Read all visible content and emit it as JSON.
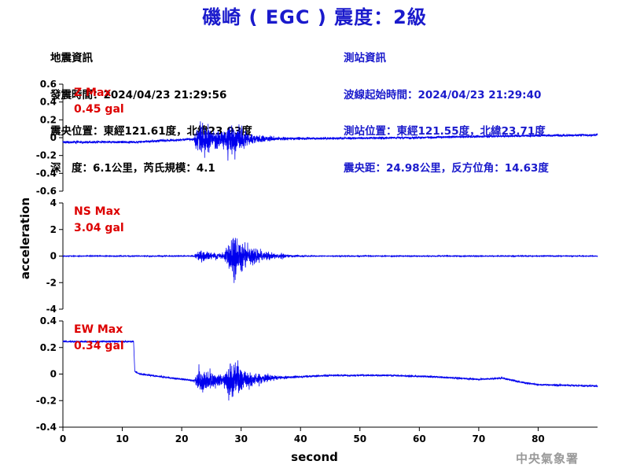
{
  "title": "磯崎 ( EGC ) 震度：2級",
  "quake_info": {
    "heading": "地震資訊",
    "time": "發震時間：2024/04/23 21:29:56",
    "epicenter": "震央位置：東經121.61度，北緯23.93度",
    "depth_magnitude": "深　度：6.1公里，芮氏規模：4.1"
  },
  "station_info": {
    "heading": "測站資訊",
    "wave_start": "波線起始時間：2024/04/23 21:29:40",
    "location": "測站位置：東經121.55度，北緯23.71度",
    "distance_azimuth": "震央距：24.98公里，反方位角：14.63度"
  },
  "watermark": "中央氣象署",
  "colors": {
    "title": "#1a1acc",
    "trace": "#0000ee",
    "max_label": "#dd0000",
    "station_text": "#1a1acc"
  },
  "chart_data": {
    "type": "line",
    "xlabel": "second",
    "ylabel": "acceleration",
    "x_ticks": [
      0,
      10,
      20,
      30,
      40,
      50,
      60,
      70,
      80
    ],
    "xlim": [
      0,
      90
    ],
    "panels": [
      {
        "name": "Z",
        "max_label": "Z Max",
        "max_value": "0.45 gal",
        "ylim": [
          -0.6,
          0.6
        ],
        "y_ticks": [
          0.6,
          0.4,
          0.2,
          0,
          -0.2,
          -0.4,
          -0.6
        ],
        "y_tick_labels": [
          "0.6",
          "0.4",
          "0.2",
          "0",
          "-0.2",
          "-0.4",
          "-0.6"
        ],
        "baseline": [
          [
            0,
            -0.05
          ],
          [
            12,
            -0.05
          ],
          [
            21,
            -0.02
          ],
          [
            40,
            -0.01
          ],
          [
            60,
            0.0
          ],
          [
            75,
            0.02
          ],
          [
            90,
            0.03
          ]
        ],
        "noise_level": 0.02,
        "bursts": [
          {
            "t_start": 22,
            "t_peak": 23,
            "t_end": 40,
            "amp": 0.38
          },
          {
            "t_start": 27,
            "t_peak": 28,
            "t_end": 38,
            "amp": 0.3
          }
        ]
      },
      {
        "name": "NS",
        "max_label": "NS Max",
        "max_value": "3.04 gal",
        "ylim": [
          -4,
          4
        ],
        "y_ticks": [
          4,
          2,
          0,
          -2,
          -4
        ],
        "y_tick_labels": [
          "4",
          "2",
          "0",
          "-2",
          "-4"
        ],
        "baseline": [
          [
            0,
            0.0
          ],
          [
            90,
            0.0
          ]
        ],
        "noise_level": 0.05,
        "bursts": [
          {
            "t_start": 22,
            "t_peak": 23,
            "t_end": 40,
            "amp": 0.8
          },
          {
            "t_start": 27,
            "t_peak": 28.5,
            "t_end": 42,
            "amp": 2.8
          }
        ]
      },
      {
        "name": "EW",
        "max_label": "EW Max",
        "max_value": "0.34 gal",
        "ylim": [
          -0.4,
          0.4
        ],
        "y_ticks": [
          0.4,
          0.2,
          0,
          -0.2,
          -0.4
        ],
        "y_tick_labels": [
          "0.4",
          "0.2",
          "0",
          "-0.2",
          "-0.4"
        ],
        "baseline": [
          [
            0,
            0.245
          ],
          [
            11.9,
            0.245
          ],
          [
            12.1,
            0.02
          ],
          [
            13,
            0.0
          ],
          [
            22,
            -0.05
          ],
          [
            30,
            -0.04
          ],
          [
            45,
            -0.01
          ],
          [
            55,
            -0.01
          ],
          [
            62,
            -0.02
          ],
          [
            70,
            -0.04
          ],
          [
            74,
            -0.03
          ],
          [
            77,
            -0.06
          ],
          [
            80,
            -0.08
          ],
          [
            90,
            -0.09
          ]
        ],
        "noise_level": 0.01,
        "bursts": [
          {
            "t_start": 22,
            "t_peak": 23,
            "t_end": 38,
            "amp": 0.18
          },
          {
            "t_start": 27,
            "t_peak": 28.3,
            "t_end": 40,
            "amp": 0.28
          }
        ]
      }
    ]
  }
}
